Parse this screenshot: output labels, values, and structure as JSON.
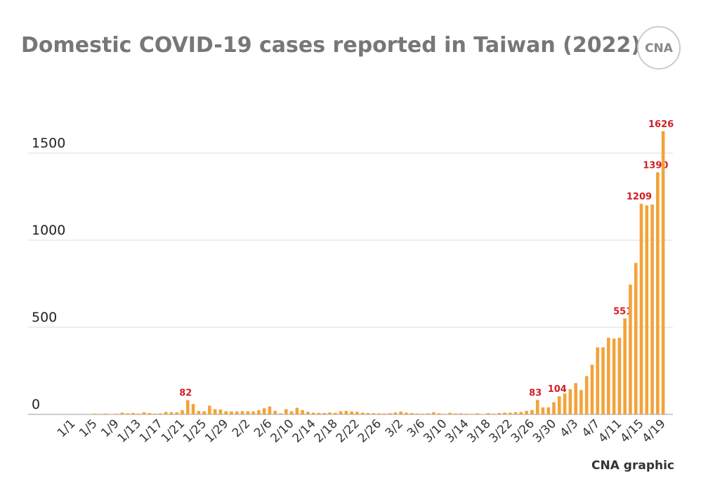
{
  "chart_data": {
    "type": "bar",
    "title": "Domestic COVID-19 cases reported in Taiwan (2022)",
    "logo": "CNA",
    "source": "CNA graphic",
    "categories": [
      "1/1",
      null,
      null,
      null,
      "1/5",
      null,
      null,
      null,
      "1/9",
      null,
      null,
      null,
      "1/13",
      null,
      null,
      null,
      "1/17",
      null,
      null,
      null,
      "1/21",
      null,
      null,
      null,
      "1/25",
      null,
      null,
      null,
      "1/29",
      null,
      null,
      null,
      "2/2",
      null,
      null,
      null,
      "2/6",
      null,
      null,
      null,
      "2/10",
      null,
      null,
      null,
      "2/14",
      null,
      null,
      null,
      "2/18",
      null,
      null,
      null,
      "2/22",
      null,
      null,
      null,
      "2/26",
      null,
      null,
      null,
      "3/2",
      null,
      null,
      null,
      "3/6",
      null,
      null,
      null,
      "3/10",
      null,
      null,
      null,
      "3/14",
      null,
      null,
      null,
      "3/18",
      null,
      null,
      null,
      "3/22",
      null,
      null,
      null,
      "3/26",
      null,
      null,
      null,
      "3/30",
      null,
      null,
      null,
      "4/3",
      null,
      null,
      null,
      "4/7",
      null,
      null,
      null,
      "4/11",
      null,
      null,
      null,
      "4/15",
      null,
      null,
      null,
      "4/19"
    ],
    "values": [
      0,
      0,
      0,
      1,
      4,
      3,
      5,
      2,
      4,
      10,
      6,
      8,
      5,
      12,
      8,
      4,
      6,
      14,
      13,
      12,
      24,
      82,
      60,
      20,
      18,
      50,
      30,
      28,
      18,
      17,
      17,
      19,
      18,
      17,
      24,
      35,
      45,
      20,
      6,
      30,
      18,
      38,
      25,
      15,
      10,
      9,
      8,
      11,
      9,
      18,
      20,
      17,
      15,
      10,
      8,
      7,
      6,
      5,
      7,
      11,
      16,
      10,
      8,
      5,
      4,
      6,
      12,
      6,
      3,
      9,
      5,
      6,
      4,
      3,
      6,
      2,
      7,
      4,
      8,
      10,
      10,
      12,
      14,
      20,
      25,
      83,
      40,
      40,
      70,
      104,
      120,
      145,
      180,
      140,
      220,
      285,
      385,
      385,
      440,
      435,
      440,
      551,
      745,
      870,
      1209,
      1200,
      1205,
      1390,
      1626
    ],
    "value_labels": [
      null,
      null,
      null,
      null,
      null,
      null,
      null,
      null,
      null,
      null,
      null,
      null,
      null,
      null,
      null,
      null,
      null,
      null,
      null,
      null,
      null,
      "82",
      null,
      null,
      null,
      null,
      null,
      null,
      null,
      null,
      null,
      null,
      null,
      null,
      null,
      null,
      null,
      null,
      null,
      null,
      null,
      null,
      null,
      null,
      null,
      null,
      null,
      null,
      null,
      null,
      null,
      null,
      null,
      null,
      null,
      null,
      null,
      null,
      null,
      null,
      null,
      null,
      null,
      null,
      null,
      null,
      null,
      null,
      null,
      null,
      null,
      null,
      null,
      null,
      null,
      null,
      null,
      null,
      null,
      null,
      null,
      null,
      null,
      null,
      null,
      "83",
      null,
      null,
      null,
      "104",
      null,
      null,
      null,
      null,
      null,
      null,
      null,
      null,
      null,
      null,
      null,
      "551",
      null,
      null,
      "1209",
      null,
      null,
      "1390",
      "1626"
    ],
    "color": "#f2a33a",
    "label_color": "#d11f26",
    "ylim": [
      0,
      1700
    ],
    "yticks": [
      0,
      500,
      1000,
      1500
    ],
    "grid": true
  }
}
